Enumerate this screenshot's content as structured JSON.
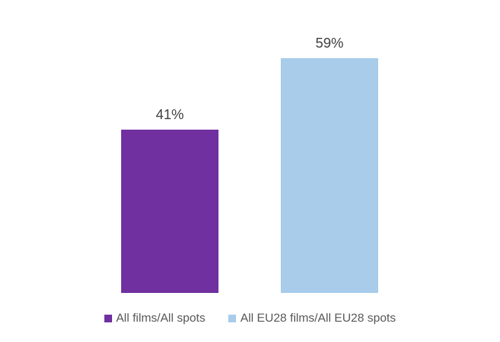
{
  "chart_data": {
    "type": "bar",
    "title": "",
    "xlabel": "",
    "ylabel": "",
    "categories": [
      "All films/All spots",
      "All EU28 films/All EU28 spots"
    ],
    "series": [
      {
        "name": "All films/All spots",
        "value": 41,
        "label": "41%",
        "color": "#7030A0"
      },
      {
        "name": "All EU28 films/All EU28 spots",
        "value": 59,
        "label": "59%",
        "color": "#A8CCEA"
      }
    ],
    "ylim": [
      0,
      70
    ],
    "grid": false,
    "axes_visible": false,
    "data_labels": true,
    "legend_position": "bottom"
  },
  "colors": {
    "background": "#FFFFFF",
    "data_label_text": "#404040",
    "legend_text": "#595959",
    "bar_purple": "#7030A0",
    "bar_light_blue": "#A8CCEA"
  }
}
